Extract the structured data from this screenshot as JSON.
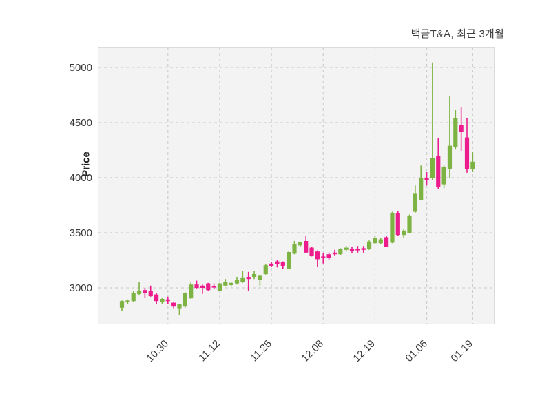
{
  "title": "백금T&A, 최근 3개월",
  "y_axis": {
    "label": "Price",
    "ticks": [
      3000,
      3500,
      4000,
      4500,
      5000
    ]
  },
  "x_axis": {
    "ticks": [
      {
        "label": "10.30",
        "index": 8
      },
      {
        "label": "11.12",
        "index": 17
      },
      {
        "label": "11.25",
        "index": 26
      },
      {
        "label": "12.08",
        "index": 35
      },
      {
        "label": "12.19",
        "index": 44
      },
      {
        "label": "01.06",
        "index": 53
      },
      {
        "label": "01.19",
        "index": 61
      }
    ]
  },
  "colors": {
    "up": "#7cb342",
    "down": "#ec1c8d",
    "grid": "#cdcdcd",
    "plot_bg": "#f3f3f3",
    "plot_border": "#dcdcdc",
    "text": "#3a3a3a"
  },
  "chart_data": {
    "type": "candlestick",
    "title": "백금T&A, 최근 3개월",
    "ylabel": "Price",
    "ylim": [
      2720,
      5190
    ],
    "grid": "dashed",
    "legend": "none",
    "ohlc_order": [
      "open",
      "high",
      "low",
      "close"
    ],
    "candles": [
      [
        2820,
        2885,
        2790,
        2880
      ],
      [
        2870,
        2895,
        2850,
        2885
      ],
      [
        2880,
        2975,
        2870,
        2955
      ],
      [
        2945,
        3050,
        2935,
        2970
      ],
      [
        2980,
        3000,
        2910,
        2955
      ],
      [
        2975,
        3020,
        2920,
        2925
      ],
      [
        2940,
        2950,
        2850,
        2880
      ],
      [
        2875,
        2910,
        2855,
        2900
      ],
      [
        2895,
        2920,
        2850,
        2880
      ],
      [
        2865,
        2875,
        2815,
        2830
      ],
      [
        2815,
        2855,
        2755,
        2850
      ],
      [
        2830,
        2960,
        2820,
        2955
      ],
      [
        2905,
        3050,
        2900,
        3030
      ],
      [
        3030,
        3065,
        2995,
        3000
      ],
      [
        3020,
        3030,
        2945,
        3000
      ],
      [
        3040,
        3045,
        2970,
        2980
      ],
      [
        3015,
        3040,
        2990,
        3005
      ],
      [
        2975,
        3045,
        2970,
        3040
      ],
      [
        3020,
        3080,
        3015,
        3055
      ],
      [
        3025,
        3055,
        3010,
        3045
      ],
      [
        3040,
        3100,
        3030,
        3070
      ],
      [
        3050,
        3155,
        3045,
        3095
      ],
      [
        3100,
        3145,
        2970,
        3080
      ],
      [
        3100,
        3155,
        3080,
        3125
      ],
      [
        3070,
        3115,
        3020,
        3110
      ],
      [
        3125,
        3215,
        3120,
        3205
      ],
      [
        3220,
        3235,
        3190,
        3200
      ],
      [
        3240,
        3250,
        3185,
        3215
      ],
      [
        3235,
        3240,
        3175,
        3200
      ],
      [
        3175,
        3330,
        3170,
        3325
      ],
      [
        3310,
        3425,
        3305,
        3395
      ],
      [
        3385,
        3420,
        3370,
        3415
      ],
      [
        3425,
        3470,
        3315,
        3320
      ],
      [
        3365,
        3375,
        3285,
        3290
      ],
      [
        3330,
        3340,
        3190,
        3260
      ],
      [
        3285,
        3315,
        3220,
        3270
      ],
      [
        3305,
        3320,
        3255,
        3275
      ],
      [
        3320,
        3345,
        3290,
        3305
      ],
      [
        3305,
        3360,
        3300,
        3350
      ],
      [
        3345,
        3380,
        3330,
        3365
      ],
      [
        3350,
        3375,
        3315,
        3345
      ],
      [
        3355,
        3380,
        3320,
        3340
      ],
      [
        3360,
        3380,
        3320,
        3345
      ],
      [
        3350,
        3430,
        3345,
        3420
      ],
      [
        3405,
        3470,
        3400,
        3450
      ],
      [
        3405,
        3450,
        3395,
        3440
      ],
      [
        3460,
        3470,
        3370,
        3375
      ],
      [
        3410,
        3690,
        3405,
        3680
      ],
      [
        3680,
        3700,
        3470,
        3480
      ],
      [
        3480,
        3530,
        3455,
        3520
      ],
      [
        3500,
        3665,
        3495,
        3655
      ],
      [
        3690,
        3930,
        3680,
        3860
      ],
      [
        3800,
        4110,
        3795,
        4000
      ],
      [
        4000,
        4050,
        3930,
        3980
      ],
      [
        4000,
        5045,
        3975,
        4175
      ],
      [
        4200,
        4360,
        3900,
        3915
      ],
      [
        3940,
        4110,
        3905,
        4095
      ],
      [
        4080,
        4740,
        4000,
        4290
      ],
      [
        4280,
        4615,
        4255,
        4540
      ],
      [
        4475,
        4640,
        4245,
        4415
      ],
      [
        4365,
        4540,
        4045,
        4080
      ],
      [
        4080,
        4230,
        4050,
        4145
      ]
    ]
  }
}
